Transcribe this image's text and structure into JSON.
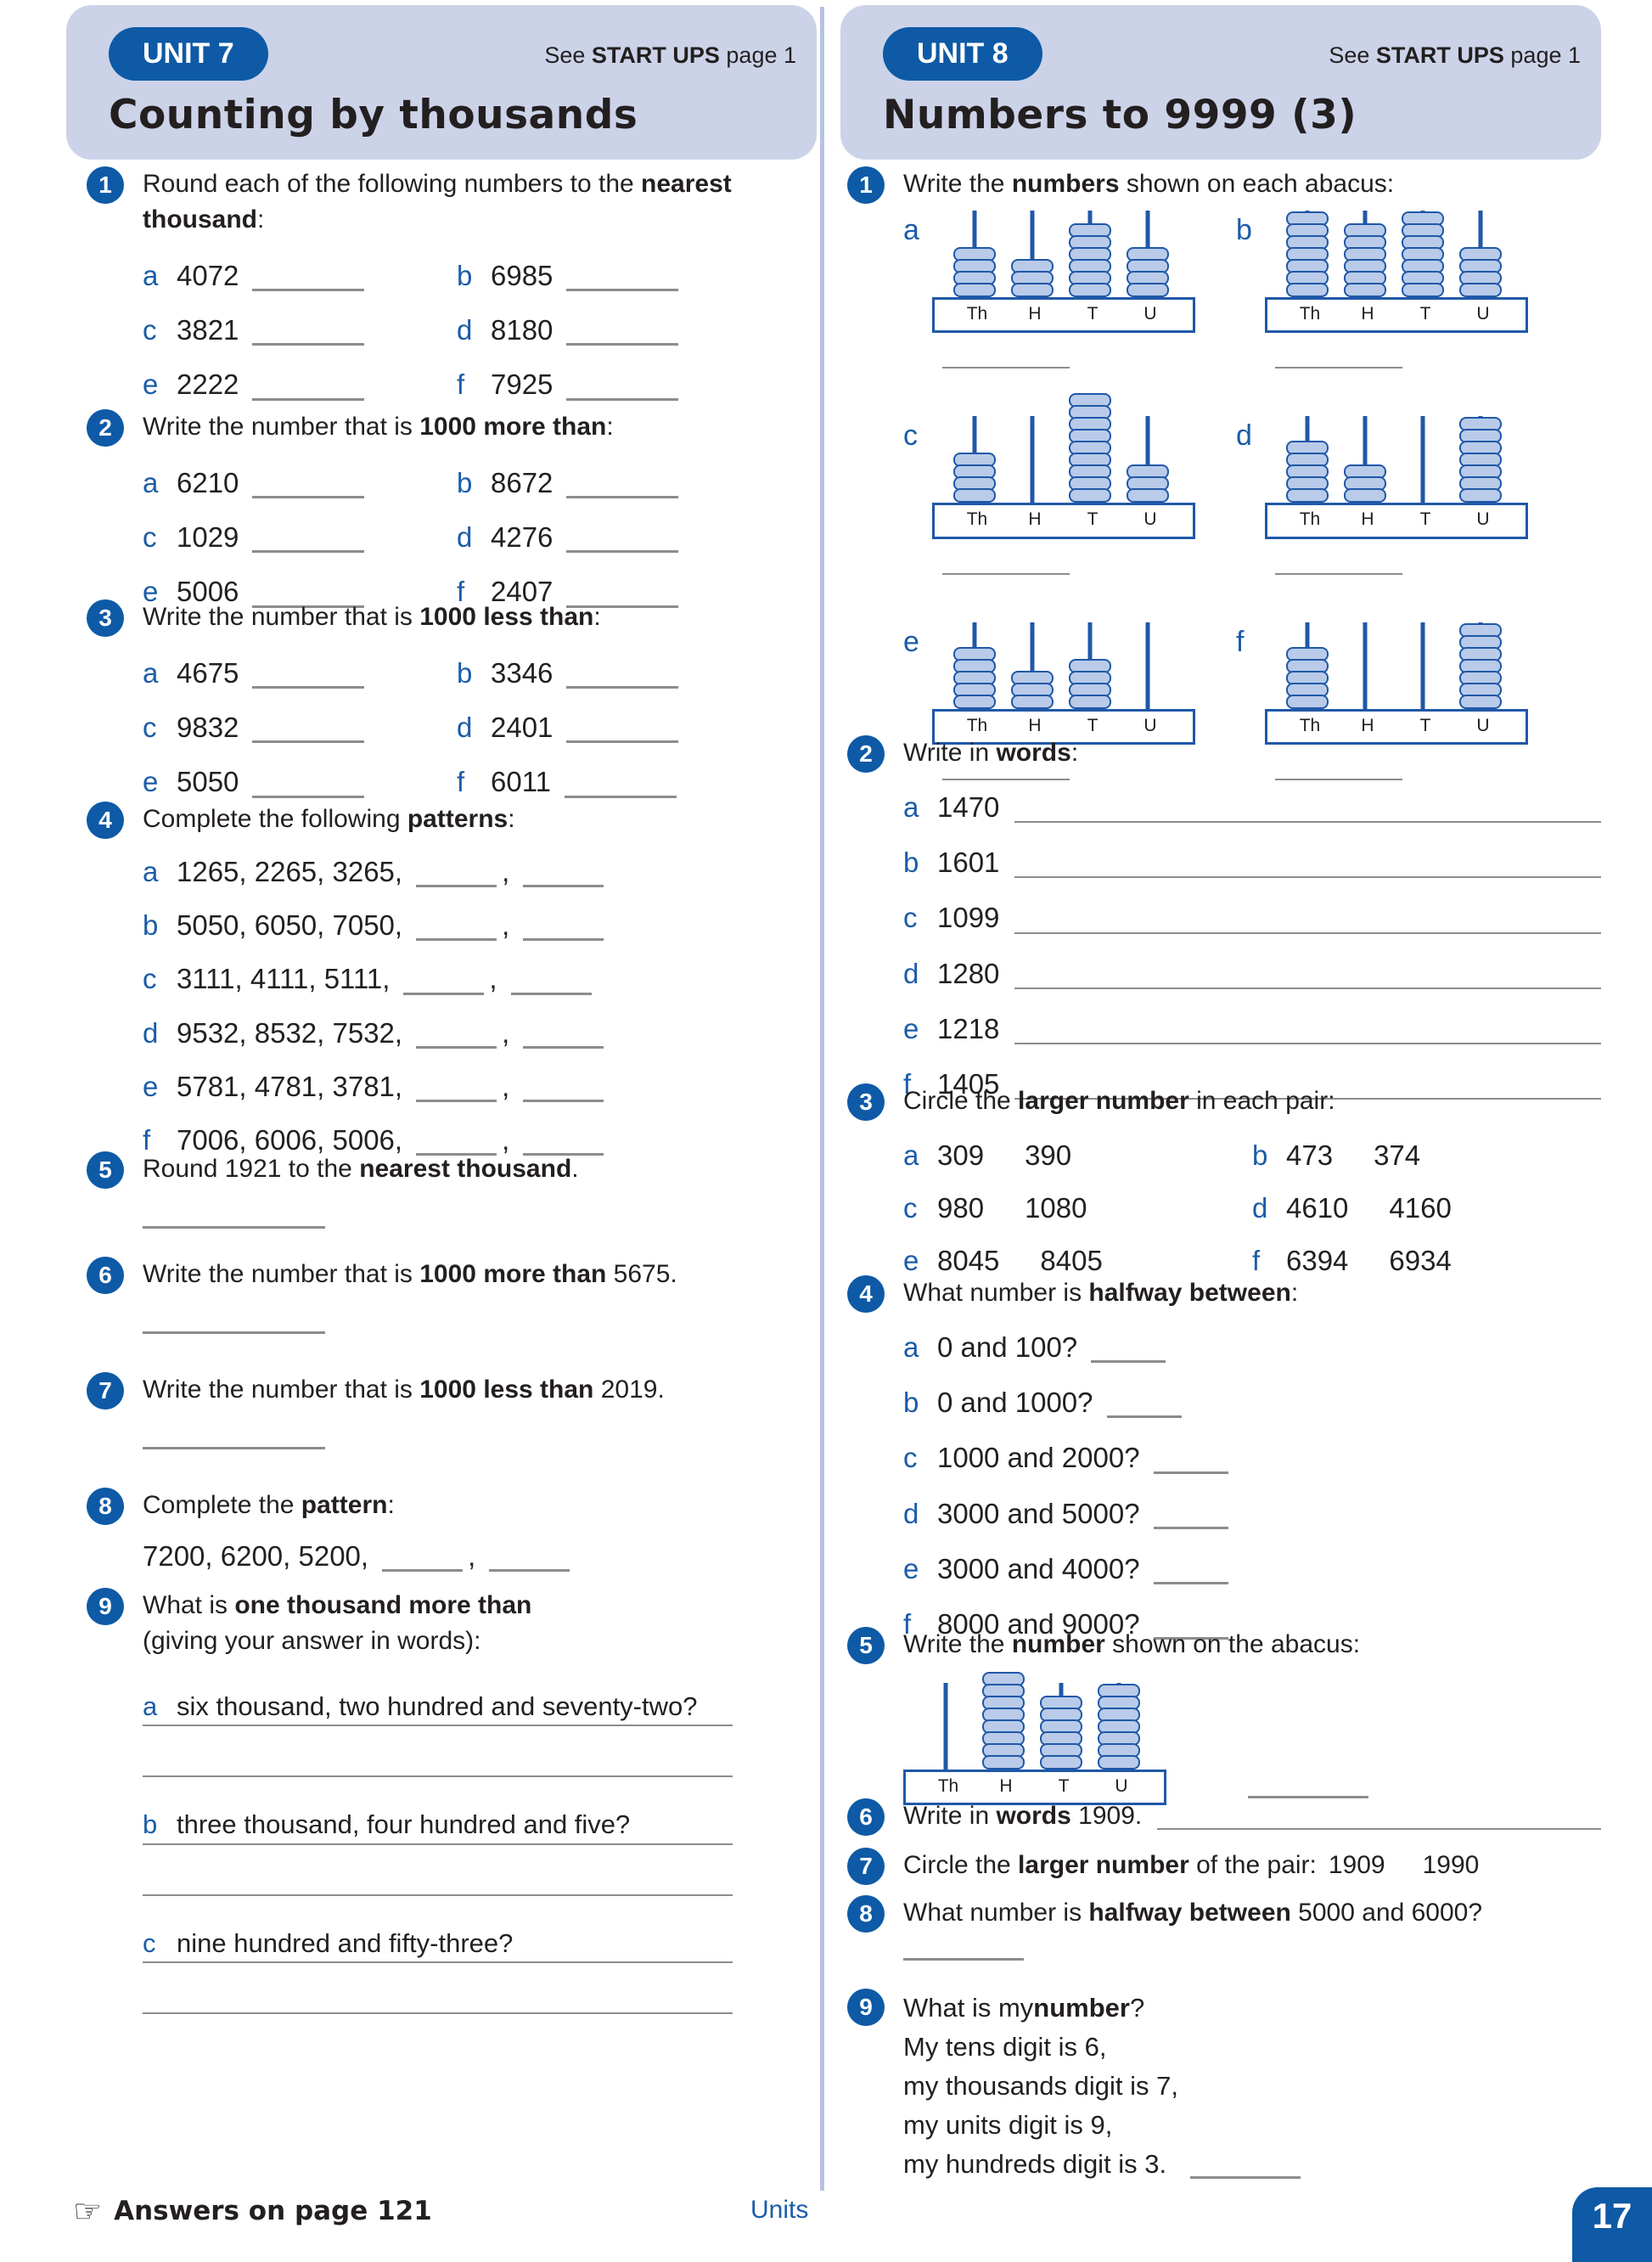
{
  "colors": {
    "accent_blue": "#0e5aa6",
    "letter_blue": "#1b5ca8",
    "header_bg": "#ccd3e8",
    "divider": "#b6c2e0",
    "abacus_stroke": "#2058a8",
    "bead_fill": "#b9cbe9",
    "line_gray": "#8c8c8e",
    "text": "#231f20"
  },
  "unit7": {
    "unit_label": "UNIT 7",
    "title": "Counting by thousands",
    "see": {
      "pre": "See ",
      "bold": "START UPS",
      "post": " page 1"
    },
    "q1": {
      "num": "1",
      "pre": "Round each of the following numbers to the ",
      "bold": "nearest thousand",
      "post": ":",
      "items": [
        {
          "letter": "a",
          "value": "4072"
        },
        {
          "letter": "b",
          "value": "6985"
        },
        {
          "letter": "c",
          "value": "3821"
        },
        {
          "letter": "d",
          "value": "8180"
        },
        {
          "letter": "e",
          "value": "2222"
        },
        {
          "letter": "f",
          "value": "7925"
        }
      ]
    },
    "q2": {
      "num": "2",
      "pre": "Write the number that is ",
      "bold": "1000 more than",
      "post": ":",
      "items": [
        {
          "letter": "a",
          "value": "6210"
        },
        {
          "letter": "b",
          "value": "8672"
        },
        {
          "letter": "c",
          "value": "1029"
        },
        {
          "letter": "d",
          "value": "4276"
        },
        {
          "letter": "e",
          "value": "5006"
        },
        {
          "letter": "f",
          "value": "2407"
        }
      ]
    },
    "q3": {
      "num": "3",
      "pre": "Write the number that is ",
      "bold": "1000 less than",
      "post": ":",
      "items": [
        {
          "letter": "a",
          "value": "4675"
        },
        {
          "letter": "b",
          "value": "3346"
        },
        {
          "letter": "c",
          "value": "9832"
        },
        {
          "letter": "d",
          "value": "2401"
        },
        {
          "letter": "e",
          "value": "5050"
        },
        {
          "letter": "f",
          "value": "6011"
        }
      ]
    },
    "q4": {
      "num": "4",
      "pre": "Complete the following ",
      "bold": "patterns",
      "post": ":",
      "comma": ",",
      "items": [
        {
          "letter": "a",
          "value": "1265, 2265, 3265,"
        },
        {
          "letter": "b",
          "value": "5050, 6050, 7050,"
        },
        {
          "letter": "c",
          "value": "3111, 4111, 5111,"
        },
        {
          "letter": "d",
          "value": "9532, 8532, 7532,"
        },
        {
          "letter": "e",
          "value": "5781, 4781, 3781,"
        },
        {
          "letter": "f",
          "value": "7006, 6006, 5006,"
        }
      ]
    },
    "q5": {
      "num": "5",
      "pre": "Round 1921 to the ",
      "bold": "nearest thousand",
      "post": "."
    },
    "q6": {
      "num": "6",
      "pre": "Write the number that is ",
      "bold": "1000 more than",
      "post": " 5675."
    },
    "q7": {
      "num": "7",
      "pre": "Write the number that is ",
      "bold": "1000 less than",
      "post": " 2019."
    },
    "q8": {
      "num": "8",
      "pre": "Complete the ",
      "bold": "pattern",
      "post": ":",
      "sequence": "7200, 6200, 5200,",
      "comma": ","
    },
    "q9": {
      "num": "9",
      "pre": "What is ",
      "bold": "one thousand more than",
      "post": "",
      "line2": "(giving your answer in words):",
      "items": [
        {
          "letter": "a",
          "text": "six thousand, two hundred and seventy-two?"
        },
        {
          "letter": "b",
          "text": "three thousand, four hundred and five?"
        },
        {
          "letter": "c",
          "text": "nine hundred and fifty-three?"
        }
      ]
    }
  },
  "unit8": {
    "unit_label": "UNIT 8",
    "title": "Numbers to 9999 (3)",
    "see": {
      "pre": "See ",
      "bold": "START UPS",
      "post": " page 1"
    },
    "q1": {
      "num": "1",
      "pre": "Write the ",
      "bold": "numbers",
      "post": " shown on each abacus:",
      "column_labels": [
        "Th",
        "H",
        "T",
        "U"
      ],
      "abacuses": [
        {
          "letter": "a",
          "beads": [
            4,
            3,
            6,
            4
          ]
        },
        {
          "letter": "b",
          "beads": [
            7,
            6,
            7,
            4
          ]
        },
        {
          "letter": "c",
          "beads": [
            4,
            0,
            9,
            3
          ]
        },
        {
          "letter": "d",
          "beads": [
            5,
            3,
            0,
            7
          ]
        },
        {
          "letter": "e",
          "beads": [
            5,
            3,
            4,
            0
          ]
        },
        {
          "letter": "f",
          "beads": [
            5,
            0,
            0,
            7
          ]
        }
      ]
    },
    "q2": {
      "num": "2",
      "pre": "Write in ",
      "bold": "words",
      "post": ":",
      "items": [
        {
          "letter": "a",
          "value": "1470"
        },
        {
          "letter": "b",
          "value": "1601"
        },
        {
          "letter": "c",
          "value": "1099"
        },
        {
          "letter": "d",
          "value": "1280"
        },
        {
          "letter": "e",
          "value": "1218"
        },
        {
          "letter": "f",
          "value": "1405"
        }
      ]
    },
    "q3": {
      "num": "3",
      "pre": "Circle the ",
      "bold": "larger number",
      "post": " in each pair:",
      "pairs": [
        {
          "letter": "a",
          "n1": "309",
          "n2": "390"
        },
        {
          "letter": "b",
          "n1": "473",
          "n2": "374"
        },
        {
          "letter": "c",
          "n1": "980",
          "n2": "1080"
        },
        {
          "letter": "d",
          "n1": "4610",
          "n2": "4160"
        },
        {
          "letter": "e",
          "n1": "8045",
          "n2": "8405"
        },
        {
          "letter": "f",
          "n1": "6394",
          "n2": "6934"
        }
      ]
    },
    "q4": {
      "num": "4",
      "pre": "What number is ",
      "bold": "halfway between",
      "post": ":",
      "items": [
        {
          "letter": "a",
          "text": "0 and 100?"
        },
        {
          "letter": "b",
          "text": "0 and 1000?"
        },
        {
          "letter": "c",
          "text": "1000 and 2000?"
        },
        {
          "letter": "d",
          "text": "3000 and 5000?"
        },
        {
          "letter": "e",
          "text": "3000 and 4000?"
        },
        {
          "letter": "f",
          "text": "8000 and 9000?"
        }
      ]
    },
    "q5": {
      "num": "5",
      "pre": "Write the ",
      "bold": "number",
      "post": " shown on the abacus:",
      "column_labels": [
        "Th",
        "H",
        "T",
        "U"
      ],
      "beads": [
        0,
        8,
        6,
        7
      ]
    },
    "q6": {
      "num": "6",
      "pre": "Write in ",
      "bold": "words",
      "post": " 1909."
    },
    "q7": {
      "num": "7",
      "pre": "Circle the ",
      "bold": "larger number",
      "post": " of the pair:",
      "n1": "1909",
      "n2": "1990"
    },
    "q8": {
      "num": "8",
      "pre": "What number is ",
      "bold": "halfway between",
      "post": " 5000 and 6000?"
    },
    "q9": {
      "num": "9",
      "pre": "What is my ",
      "bold": "number",
      "post": "?",
      "lines": [
        "My tens digit is 6,",
        "my thousands digit is 7,",
        "my units digit is 9,",
        "my hundreds digit is 3."
      ]
    }
  },
  "footer": {
    "hand_icon": "☞",
    "answers_note": "Answers on page 121",
    "center_label": "Units",
    "page_number": "17"
  }
}
